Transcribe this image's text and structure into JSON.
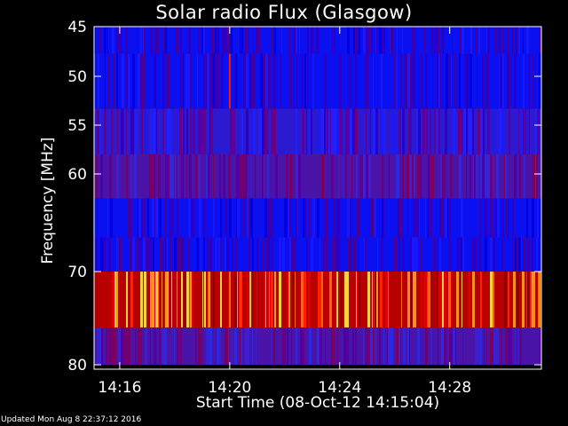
{
  "chart_data": {
    "type": "heatmap",
    "title": "Solar radio Flux (Glasgow)",
    "xlabel": "Start Time (08-Oct-12 14:15:04)",
    "ylabel": "Frequency [MHz]",
    "x_ticks": [
      "14:16",
      "14:20",
      "14:24",
      "14:28"
    ],
    "y_ticks": [
      "45",
      "50",
      "55",
      "60",
      "70",
      "80"
    ],
    "ylim": [
      45,
      80
    ],
    "xlim": [
      "14:15:04",
      "14:31:20"
    ],
    "colormap": [
      "#0000ff",
      "#5a0096",
      "#ff0000",
      "#ffff66"
    ],
    "bands": [
      {
        "range": [
          45,
          47.5
        ],
        "level": "blue"
      },
      {
        "range": [
          47.5,
          53.3
        ],
        "level": "blue"
      },
      {
        "range": [
          53.3,
          58
        ],
        "level": "blue-purple"
      },
      {
        "range": [
          58,
          62.5
        ],
        "level": "purple"
      },
      {
        "range": [
          62.5,
          66.5
        ],
        "level": "blue"
      },
      {
        "range": [
          66.5,
          70
        ],
        "level": "blue"
      },
      {
        "range": [
          70,
          76
        ],
        "level": "red-yellow"
      },
      {
        "range": [
          76,
          80
        ],
        "level": "purple"
      }
    ],
    "features": [
      {
        "type": "bright-line",
        "time": "14:20",
        "freq_range": [
          47.5,
          53.3
        ]
      }
    ]
  },
  "footer": "Updated Mon Aug  8 22:37:12 2016"
}
